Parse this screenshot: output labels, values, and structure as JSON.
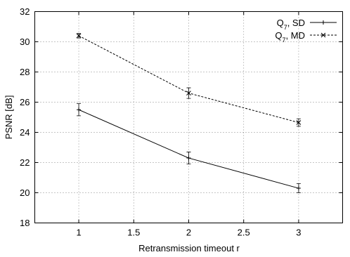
{
  "chart_data": {
    "type": "line",
    "title": "",
    "xlabel": "Retransmission timeout r",
    "ylabel": "PSNR [dB]",
    "xlim": [
      0.6,
      3.4
    ],
    "ylim": [
      18,
      32
    ],
    "x_ticks": [
      1,
      1.5,
      2,
      2.5,
      3
    ],
    "x_tick_labels": [
      "1",
      "1.5",
      "2",
      "2.5",
      "3"
    ],
    "y_ticks": [
      18,
      20,
      22,
      24,
      26,
      28,
      30,
      32
    ],
    "y_tick_labels": [
      "18",
      "20",
      "22",
      "24",
      "26",
      "28",
      "30",
      "32"
    ],
    "grid": "dotted",
    "legend": "top-right",
    "series": [
      {
        "name": "Q7, SD",
        "name_base": "Q",
        "name_sub": "7",
        "name_rest": ", SD",
        "style": "solid",
        "marker": "plus",
        "x": [
          1,
          2,
          3
        ],
        "y": [
          25.5,
          22.3,
          20.3
        ],
        "err": [
          0.4,
          0.4,
          0.3
        ]
      },
      {
        "name": "Q7, MD",
        "name_base": "Q",
        "name_sub": "7",
        "name_rest": ", MD",
        "style": "dashed",
        "marker": "x",
        "x": [
          1,
          2,
          3
        ],
        "y": [
          30.4,
          26.6,
          24.65
        ],
        "err": [
          0.15,
          0.35,
          0.25
        ]
      }
    ]
  }
}
